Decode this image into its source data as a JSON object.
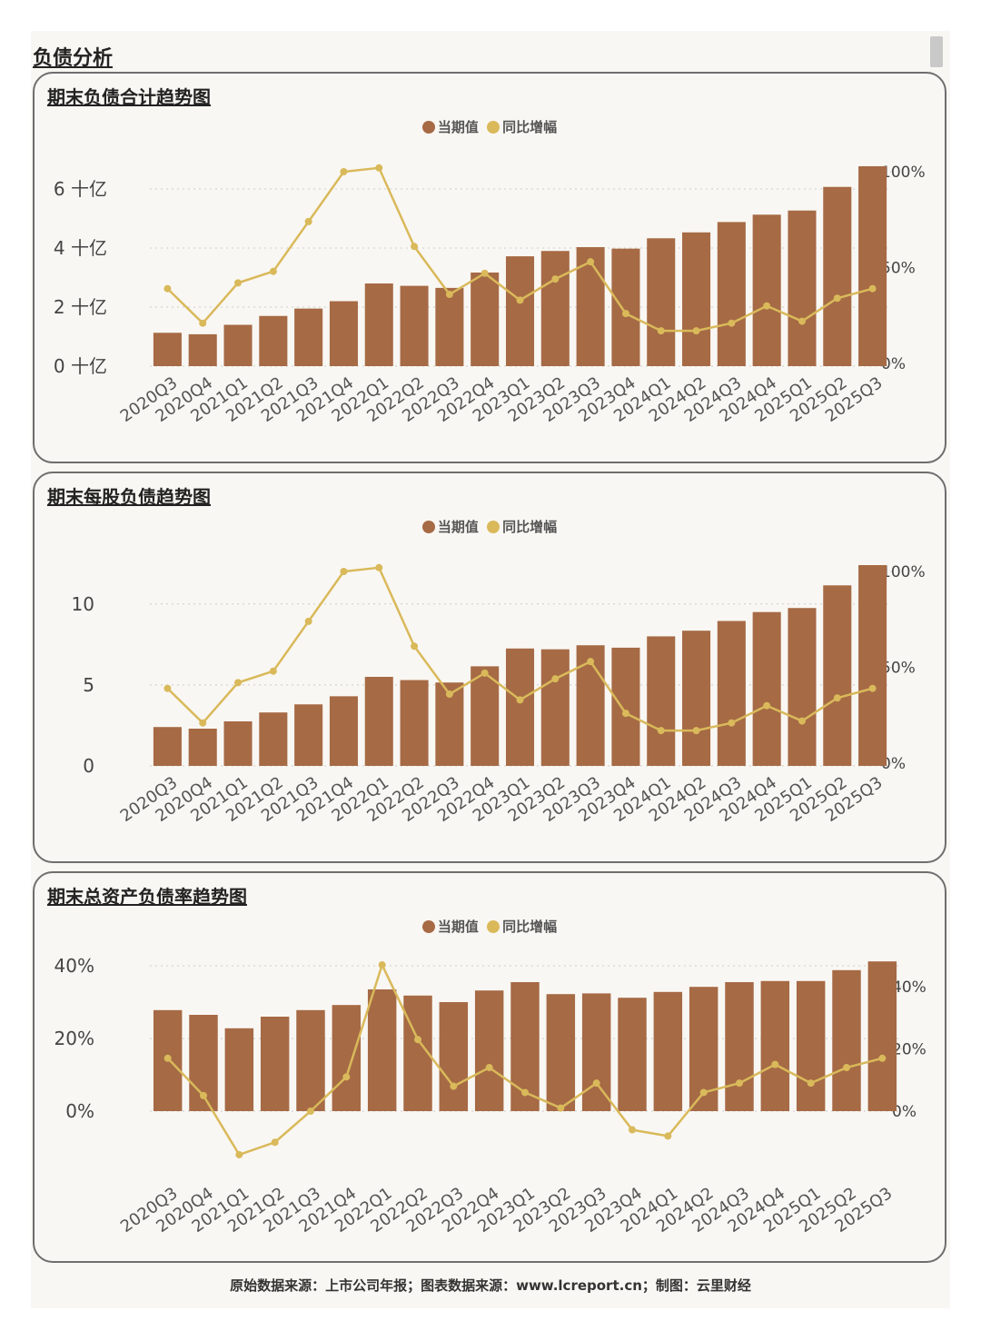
{
  "section_title": "负债分析",
  "colors": {
    "bar": "#a66a45",
    "line": "#d9b95a",
    "grid": "#cccccc"
  },
  "footer": "原始数据来源：上市公司年报；图表数据来源：www.lcreport.cn；制图：云里财经",
  "chart_data": [
    {
      "type": "bar",
      "title": "期末负债合计趋势图",
      "legend": [
        "当期值",
        "同比增幅"
      ],
      "categories": [
        "2020Q3",
        "2020Q4",
        "2021Q1",
        "2021Q2",
        "2021Q3",
        "2021Q4",
        "2022Q1",
        "2022Q2",
        "2022Q3",
        "2022Q4",
        "2023Q1",
        "2023Q2",
        "2023Q3",
        "2023Q4",
        "2024Q1",
        "2024Q2",
        "2024Q3",
        "2024Q4",
        "2025Q1",
        "2025Q2",
        "2025Q3"
      ],
      "series": [
        {
          "name": "当期值",
          "type": "bar",
          "axis": "left",
          "values": [
            1.13,
            1.08,
            1.4,
            1.7,
            1.95,
            2.2,
            2.8,
            2.72,
            2.65,
            3.17,
            3.72,
            3.9,
            4.03,
            3.98,
            4.33,
            4.53,
            4.88,
            5.13,
            5.27,
            6.07,
            6.77
          ]
        },
        {
          "name": "同比增幅",
          "type": "line",
          "axis": "right",
          "values": [
            39,
            21,
            42,
            48,
            74,
            100,
            102,
            61,
            36,
            47,
            33,
            44,
            53,
            26,
            17,
            17,
            21,
            30,
            22,
            34,
            39
          ]
        }
      ],
      "left_axis": {
        "ticks": [
          "0 十亿",
          "2 十亿",
          "4 十亿",
          "6 十亿"
        ],
        "tick_values": [
          0,
          2,
          4,
          6
        ],
        "range": [
          0,
          6.8
        ]
      },
      "right_axis": {
        "ticks": [
          "0%",
          "50%",
          "100%"
        ],
        "tick_values": [
          0,
          50,
          100
        ],
        "range": [
          0,
          100
        ]
      },
      "grid": true,
      "legend_position": "top-center"
    },
    {
      "type": "bar",
      "title": "期末每股负债趋势图",
      "legend": [
        "当期值",
        "同比增幅"
      ],
      "categories": [
        "2020Q3",
        "2020Q4",
        "2021Q1",
        "2021Q2",
        "2021Q3",
        "2021Q4",
        "2022Q1",
        "2022Q2",
        "2022Q3",
        "2022Q4",
        "2023Q1",
        "2023Q2",
        "2023Q3",
        "2023Q4",
        "2024Q1",
        "2024Q2",
        "2024Q3",
        "2024Q4",
        "2025Q1",
        "2025Q2",
        "2025Q3"
      ],
      "series": [
        {
          "name": "当期值",
          "type": "bar",
          "axis": "left",
          "values": [
            2.4,
            2.3,
            2.75,
            3.3,
            3.8,
            4.3,
            5.5,
            5.3,
            5.15,
            6.15,
            7.25,
            7.2,
            7.45,
            7.3,
            8.0,
            8.35,
            8.95,
            9.5,
            9.75,
            11.15,
            12.4
          ]
        },
        {
          "name": "同比增幅",
          "type": "line",
          "axis": "right",
          "values": [
            39,
            21,
            42,
            48,
            74,
            100,
            102,
            61,
            36,
            47,
            33,
            44,
            53,
            26,
            17,
            17,
            21,
            30,
            22,
            34,
            39
          ]
        }
      ],
      "left_axis": {
        "ticks": [
          "0",
          "5",
          "10"
        ],
        "tick_values": [
          0,
          5,
          10
        ],
        "range": [
          0,
          12.4
        ]
      },
      "right_axis": {
        "ticks": [
          "0%",
          "50%",
          "100%"
        ],
        "tick_values": [
          0,
          50,
          100
        ],
        "range": [
          0,
          100
        ]
      },
      "grid": true,
      "legend_position": "top-center"
    },
    {
      "type": "bar",
      "title": "期末总资产负债率趋势图",
      "legend": [
        "当期值",
        "同比增幅"
      ],
      "categories": [
        "2020Q3",
        "2020Q4",
        "2021Q1",
        "2021Q2",
        "2021Q3",
        "2021Q4",
        "2022Q1",
        "2022Q2",
        "2022Q3",
        "2022Q4",
        "2023Q1",
        "2023Q2",
        "2023Q3",
        "2023Q4",
        "2024Q1",
        "2024Q2",
        "2024Q3",
        "2024Q4",
        "2025Q1",
        "2025Q2",
        "2025Q3"
      ],
      "series": [
        {
          "name": "当期值",
          "type": "bar",
          "axis": "left",
          "values": [
            27.8,
            26.5,
            22.8,
            26.0,
            27.8,
            29.2,
            33.5,
            31.8,
            30.0,
            33.2,
            35.5,
            32.2,
            32.4,
            31.2,
            32.8,
            34.2,
            35.5,
            35.8,
            35.8,
            38.8,
            41.2
          ]
        },
        {
          "name": "同比增幅",
          "type": "line",
          "axis": "right",
          "values": [
            17,
            5,
            -14,
            -10,
            0,
            11,
            47,
            23,
            8,
            14,
            6,
            1,
            9,
            -6,
            -8,
            6,
            9,
            15,
            9,
            14,
            17
          ]
        }
      ],
      "left_axis": {
        "ticks": [
          "0%",
          "20%",
          "40%"
        ],
        "tick_values": [
          0,
          20,
          40
        ],
        "range": [
          0,
          40
        ]
      },
      "right_axis": {
        "ticks": [
          "0%",
          "20%",
          "40%"
        ],
        "tick_values": [
          0,
          20,
          40
        ],
        "range": [
          0,
          40
        ]
      },
      "grid": true,
      "legend_position": "top-center"
    }
  ]
}
